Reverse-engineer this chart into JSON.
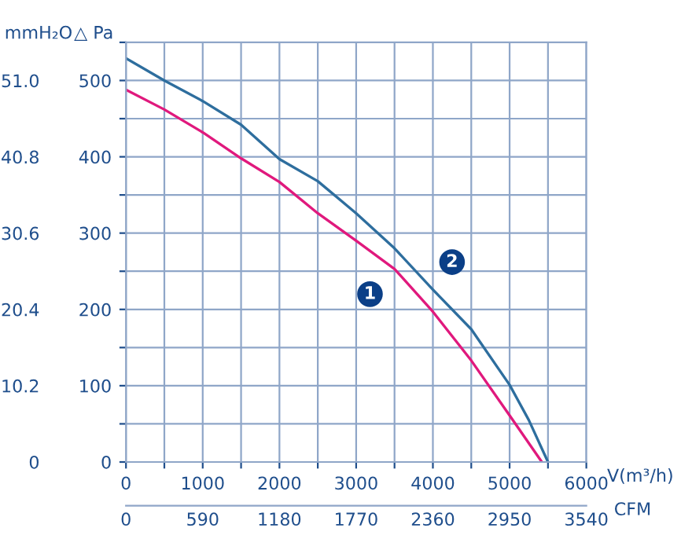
{
  "chart_data": {
    "type": "line",
    "xlabel": "V(m³/h)",
    "ylabel": "△ Pa",
    "y2label": "mmH₂O",
    "x2label": "CFM",
    "x": [
      0,
      500,
      1000,
      1500,
      2000,
      2500,
      3000,
      3500,
      4000,
      4500,
      5000,
      5250,
      5500
    ],
    "series": [
      {
        "color": "#e0197d",
        "x": [
          0,
          500,
          1000,
          1500,
          2000,
          2500,
          3000,
          3500,
          4000,
          4500,
          5000,
          5420
        ],
        "values": [
          488,
          462,
          432,
          398,
          367,
          326,
          290,
          253,
          197,
          133,
          61,
          0
        ]
      },
      {
        "color": "#2e6e9e",
        "values": [
          529,
          500,
          473,
          442,
          397,
          368,
          326,
          280,
          226,
          174,
          101,
          55,
          0
        ]
      }
    ],
    "annotations": [
      {
        "text": "1",
        "x": 3180,
        "y": 220
      },
      {
        "text": "2",
        "x": 4250,
        "y": 262
      }
    ],
    "xlim": [
      0,
      6000
    ],
    "ylim": [
      0,
      550
    ],
    "xticks": [
      0,
      {
        "value": 500,
        "label": null
      },
      1000,
      {
        "value": 1500,
        "label": null
      },
      2000,
      {
        "value": 2500,
        "label": null
      },
      3000,
      {
        "value": 3500,
        "label": null
      },
      4000,
      {
        "value": 4500,
        "label": null
      },
      5000,
      {
        "value": 5500,
        "label": null
      },
      6000
    ],
    "yticks": [
      0,
      {
        "value": 50,
        "label": null
      },
      100,
      {
        "value": 150,
        "label": null
      },
      200,
      {
        "value": 250,
        "label": null
      },
      300,
      {
        "value": 350,
        "label": null
      },
      400,
      {
        "value": 450,
        "label": null
      },
      500,
      {
        "value": 550,
        "label": null
      }
    ],
    "y2lim": [
      0,
      56.1
    ],
    "y2ticks": [
      0,
      10.2,
      20.4,
      30.6,
      40.8,
      {
        "value": 51.0,
        "label": "51.0"
      }
    ],
    "x2lim": [
      0,
      3540
    ],
    "x2ticks": [
      0,
      590,
      1180,
      1770,
      2360,
      2950,
      3540
    ],
    "grid": true,
    "legend": false,
    "marker": "none",
    "line_style": "solid"
  }
}
